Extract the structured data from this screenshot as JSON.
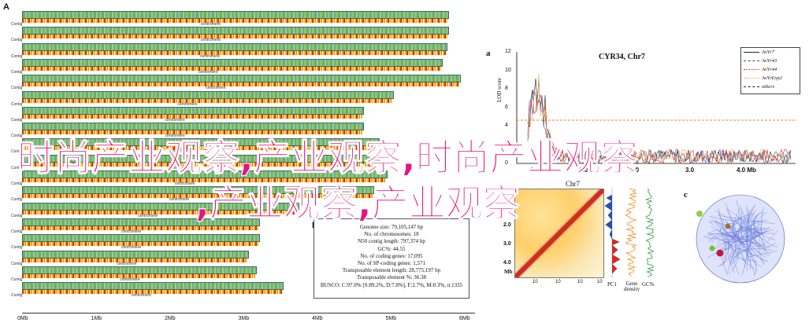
{
  "panel_a_left": {
    "letter": "A"
  },
  "panel_b_left": {
    "letter": "B"
  },
  "genome_axis_ticks": [
    "0Mb",
    "1Mb",
    "2Mb",
    "3Mb",
    "4Mb",
    "5Mb",
    "6Mb"
  ],
  "chromosomes": [
    {
      "name": "Contig",
      "centromere": "centromere"
    },
    {
      "name": "Contig",
      "centromere": "centromere"
    },
    {
      "name": "Contig",
      "centromere": "centromere"
    },
    {
      "name": "Contig",
      "centromere": "centromere"
    },
    {
      "name": "Contig",
      "centromere": "centromere"
    },
    {
      "name": "Contig",
      "centromere": "centromere"
    },
    {
      "name": "Contig",
      "centromere": "centromere"
    },
    {
      "name": "Contig",
      "centromere": "centromere"
    },
    {
      "name": "Contig",
      "centromere": "centromere"
    },
    {
      "name": "Contig",
      "centromere": "centromere"
    },
    {
      "name": "Contig",
      "centromere": "centromere"
    },
    {
      "name": "Contig",
      "centromere": "centromere"
    },
    {
      "name": "Contig",
      "centromere": "centromere"
    },
    {
      "name": "Contig",
      "centromere": "centromere"
    },
    {
      "name": "Contig",
      "centromere": "centromere"
    },
    {
      "name": "Contig",
      "centromere": "centromere"
    },
    {
      "name": "Contig",
      "centromere": "centromere"
    },
    {
      "name": "Contig",
      "centromere": "centromere"
    }
  ],
  "stats_box": {
    "rows": [
      "Genome size: 79,105,147 bp",
      "No. of chromosomes: 18",
      "N50 contig length: 797,374 bp",
      "GC%: 44.55",
      "No. of coding genes: 17,095",
      "No. of SP-coding genes: 1,571",
      "Transposable element length: 28,775,197 bp",
      "Transposable element %: 36.38",
      "BUSCO: C:97.0% [S:89.2%, D:7.8%], F:2.7%, M:0.3%, n:1335"
    ]
  },
  "right_panel_a": {
    "letter": "a",
    "title": "CYR34, Chr7",
    "ylabel": "LOD score",
    "yticks": [
      "12",
      "10",
      "8",
      "6",
      "4",
      "2",
      "0"
    ],
    "xticks": [
      "0",
      "1.0",
      "2.0",
      "3.0",
      "4.0 Mb"
    ],
    "legend": [
      {
        "label": "AvYr7",
        "color": "#222222",
        "style": "solid"
      },
      {
        "label": "AvYr43",
        "color": "#1f4fa0",
        "style": "dashed"
      },
      {
        "label": "AvYr44",
        "color": "#d4242a",
        "style": "dotted"
      },
      {
        "label": "AvYrExp2",
        "color": "#f0a040",
        "style": "dotted"
      },
      {
        "label": "others",
        "color": "#222222",
        "style": "dashed"
      }
    ]
  },
  "panel_b_right": {
    "heatmap_title": "Chr7",
    "yticks": [
      "2.0",
      "3.0",
      "4.0"
    ],
    "y_unit": "Mb",
    "xticks": [
      "10",
      "10",
      "10",
      "10"
    ],
    "bottom_labels": [
      "PC1",
      "Gene density",
      "GC%"
    ]
  },
  "panel_c": {
    "letter": "c"
  },
  "overlay_text": {
    "line1": "时尚产业观察,产业观察,时尚产业观察",
    "line2": ",产业观察,产业观察"
  },
  "colors": {
    "overlay": "#e8137f",
    "threshold": "#e8862a",
    "network": "#4a5fd0"
  }
}
